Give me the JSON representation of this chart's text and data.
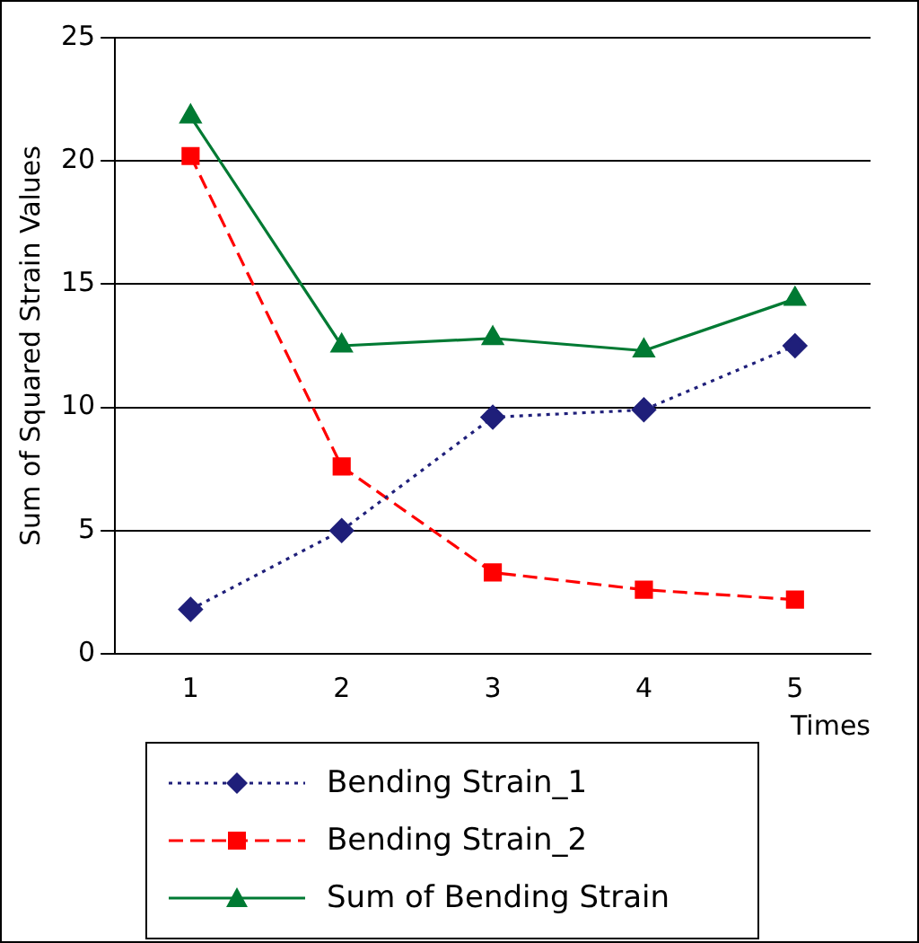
{
  "chart_data": {
    "type": "line",
    "ylabel": "Sum of Squared Strain Values",
    "xlabel": "Times",
    "categories": [
      "1",
      "2",
      "3",
      "4",
      "5"
    ],
    "series": [
      {
        "name": "Bending Strain_1",
        "color": "#1f1f7a",
        "marker": "diamond",
        "line_style": "dotted",
        "values": [
          1.8,
          5.0,
          9.6,
          9.9,
          12.5
        ]
      },
      {
        "name": "Bending Strain_2",
        "color": "#ff0000",
        "marker": "square",
        "line_style": "dashed",
        "values": [
          20.2,
          7.6,
          3.3,
          2.6,
          2.2
        ]
      },
      {
        "name": "Sum of Bending Strain",
        "color": "#007a33",
        "marker": "triangle",
        "line_style": "solid",
        "values": [
          21.8,
          12.5,
          12.8,
          12.3,
          14.4
        ]
      }
    ],
    "ylim": [
      0,
      25
    ],
    "yticks": [
      0,
      5,
      10,
      15,
      20,
      25
    ],
    "grid": "y",
    "legend": "bottom"
  }
}
